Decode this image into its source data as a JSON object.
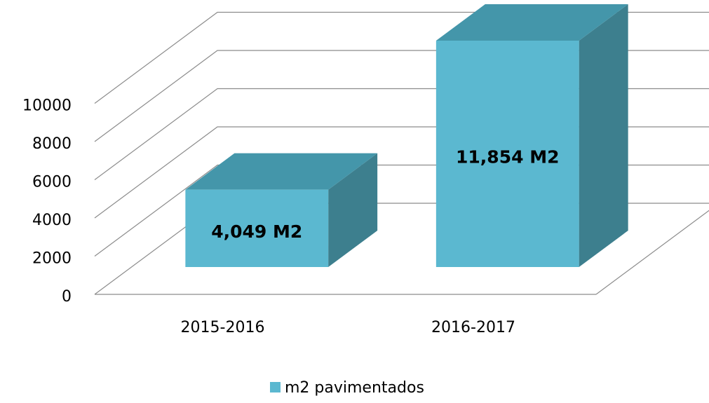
{
  "chart_data": {
    "type": "bar3d",
    "categories": [
      "2015-2016",
      "2016-2017"
    ],
    "series": [
      {
        "name": "m2 pavimentados",
        "color": "#5bb8d0",
        "values": [
          4049,
          11854
        ],
        "value_labels": [
          "4,049 M2",
          "11,854 M2"
        ]
      }
    ],
    "ylim": [
      0,
      10000
    ],
    "yticks": [
      0,
      2000,
      4000,
      6000,
      8000,
      10000
    ],
    "grid": true,
    "legend": "bottom"
  }
}
